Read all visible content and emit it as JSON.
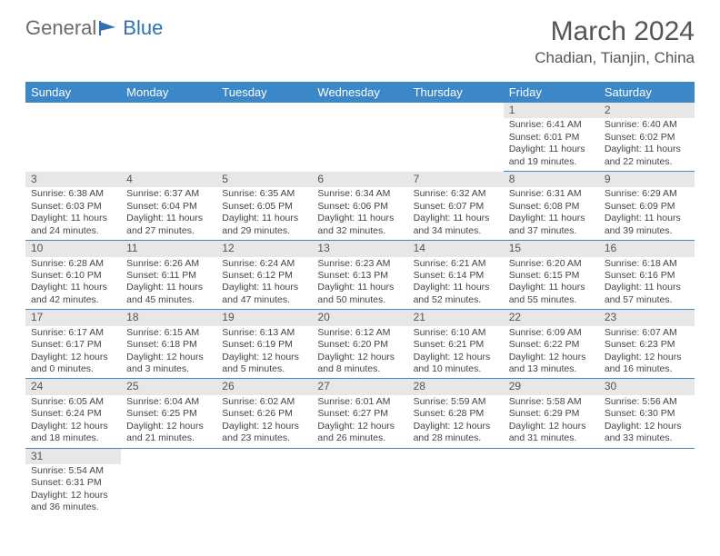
{
  "logo": {
    "text1": "General",
    "text2": "Blue"
  },
  "title": "March 2024",
  "location": "Chadian, Tianjin, China",
  "colors": {
    "header_bg": "#3b87c8",
    "header_fg": "#ffffff",
    "daynum_bg": "#e7e7e7",
    "row_divider": "#3b87c8",
    "text": "#444444"
  },
  "typography": {
    "title_fontsize": 30,
    "location_fontsize": 17,
    "weekday_fontsize": 13,
    "cell_fontsize": 10.5
  },
  "weekdays": [
    "Sunday",
    "Monday",
    "Tuesday",
    "Wednesday",
    "Thursday",
    "Friday",
    "Saturday"
  ],
  "weeks": [
    [
      null,
      null,
      null,
      null,
      null,
      {
        "n": "1",
        "sr": "Sunrise: 6:41 AM",
        "ss": "Sunset: 6:01 PM",
        "d1": "Daylight: 11 hours",
        "d2": "and 19 minutes."
      },
      {
        "n": "2",
        "sr": "Sunrise: 6:40 AM",
        "ss": "Sunset: 6:02 PM",
        "d1": "Daylight: 11 hours",
        "d2": "and 22 minutes."
      }
    ],
    [
      {
        "n": "3",
        "sr": "Sunrise: 6:38 AM",
        "ss": "Sunset: 6:03 PM",
        "d1": "Daylight: 11 hours",
        "d2": "and 24 minutes."
      },
      {
        "n": "4",
        "sr": "Sunrise: 6:37 AM",
        "ss": "Sunset: 6:04 PM",
        "d1": "Daylight: 11 hours",
        "d2": "and 27 minutes."
      },
      {
        "n": "5",
        "sr": "Sunrise: 6:35 AM",
        "ss": "Sunset: 6:05 PM",
        "d1": "Daylight: 11 hours",
        "d2": "and 29 minutes."
      },
      {
        "n": "6",
        "sr": "Sunrise: 6:34 AM",
        "ss": "Sunset: 6:06 PM",
        "d1": "Daylight: 11 hours",
        "d2": "and 32 minutes."
      },
      {
        "n": "7",
        "sr": "Sunrise: 6:32 AM",
        "ss": "Sunset: 6:07 PM",
        "d1": "Daylight: 11 hours",
        "d2": "and 34 minutes."
      },
      {
        "n": "8",
        "sr": "Sunrise: 6:31 AM",
        "ss": "Sunset: 6:08 PM",
        "d1": "Daylight: 11 hours",
        "d2": "and 37 minutes."
      },
      {
        "n": "9",
        "sr": "Sunrise: 6:29 AM",
        "ss": "Sunset: 6:09 PM",
        "d1": "Daylight: 11 hours",
        "d2": "and 39 minutes."
      }
    ],
    [
      {
        "n": "10",
        "sr": "Sunrise: 6:28 AM",
        "ss": "Sunset: 6:10 PM",
        "d1": "Daylight: 11 hours",
        "d2": "and 42 minutes."
      },
      {
        "n": "11",
        "sr": "Sunrise: 6:26 AM",
        "ss": "Sunset: 6:11 PM",
        "d1": "Daylight: 11 hours",
        "d2": "and 45 minutes."
      },
      {
        "n": "12",
        "sr": "Sunrise: 6:24 AM",
        "ss": "Sunset: 6:12 PM",
        "d1": "Daylight: 11 hours",
        "d2": "and 47 minutes."
      },
      {
        "n": "13",
        "sr": "Sunrise: 6:23 AM",
        "ss": "Sunset: 6:13 PM",
        "d1": "Daylight: 11 hours",
        "d2": "and 50 minutes."
      },
      {
        "n": "14",
        "sr": "Sunrise: 6:21 AM",
        "ss": "Sunset: 6:14 PM",
        "d1": "Daylight: 11 hours",
        "d2": "and 52 minutes."
      },
      {
        "n": "15",
        "sr": "Sunrise: 6:20 AM",
        "ss": "Sunset: 6:15 PM",
        "d1": "Daylight: 11 hours",
        "d2": "and 55 minutes."
      },
      {
        "n": "16",
        "sr": "Sunrise: 6:18 AM",
        "ss": "Sunset: 6:16 PM",
        "d1": "Daylight: 11 hours",
        "d2": "and 57 minutes."
      }
    ],
    [
      {
        "n": "17",
        "sr": "Sunrise: 6:17 AM",
        "ss": "Sunset: 6:17 PM",
        "d1": "Daylight: 12 hours",
        "d2": "and 0 minutes."
      },
      {
        "n": "18",
        "sr": "Sunrise: 6:15 AM",
        "ss": "Sunset: 6:18 PM",
        "d1": "Daylight: 12 hours",
        "d2": "and 3 minutes."
      },
      {
        "n": "19",
        "sr": "Sunrise: 6:13 AM",
        "ss": "Sunset: 6:19 PM",
        "d1": "Daylight: 12 hours",
        "d2": "and 5 minutes."
      },
      {
        "n": "20",
        "sr": "Sunrise: 6:12 AM",
        "ss": "Sunset: 6:20 PM",
        "d1": "Daylight: 12 hours",
        "d2": "and 8 minutes."
      },
      {
        "n": "21",
        "sr": "Sunrise: 6:10 AM",
        "ss": "Sunset: 6:21 PM",
        "d1": "Daylight: 12 hours",
        "d2": "and 10 minutes."
      },
      {
        "n": "22",
        "sr": "Sunrise: 6:09 AM",
        "ss": "Sunset: 6:22 PM",
        "d1": "Daylight: 12 hours",
        "d2": "and 13 minutes."
      },
      {
        "n": "23",
        "sr": "Sunrise: 6:07 AM",
        "ss": "Sunset: 6:23 PM",
        "d1": "Daylight: 12 hours",
        "d2": "and 16 minutes."
      }
    ],
    [
      {
        "n": "24",
        "sr": "Sunrise: 6:05 AM",
        "ss": "Sunset: 6:24 PM",
        "d1": "Daylight: 12 hours",
        "d2": "and 18 minutes."
      },
      {
        "n": "25",
        "sr": "Sunrise: 6:04 AM",
        "ss": "Sunset: 6:25 PM",
        "d1": "Daylight: 12 hours",
        "d2": "and 21 minutes."
      },
      {
        "n": "26",
        "sr": "Sunrise: 6:02 AM",
        "ss": "Sunset: 6:26 PM",
        "d1": "Daylight: 12 hours",
        "d2": "and 23 minutes."
      },
      {
        "n": "27",
        "sr": "Sunrise: 6:01 AM",
        "ss": "Sunset: 6:27 PM",
        "d1": "Daylight: 12 hours",
        "d2": "and 26 minutes."
      },
      {
        "n": "28",
        "sr": "Sunrise: 5:59 AM",
        "ss": "Sunset: 6:28 PM",
        "d1": "Daylight: 12 hours",
        "d2": "and 28 minutes."
      },
      {
        "n": "29",
        "sr": "Sunrise: 5:58 AM",
        "ss": "Sunset: 6:29 PM",
        "d1": "Daylight: 12 hours",
        "d2": "and 31 minutes."
      },
      {
        "n": "30",
        "sr": "Sunrise: 5:56 AM",
        "ss": "Sunset: 6:30 PM",
        "d1": "Daylight: 12 hours",
        "d2": "and 33 minutes."
      }
    ],
    [
      {
        "n": "31",
        "sr": "Sunrise: 5:54 AM",
        "ss": "Sunset: 6:31 PM",
        "d1": "Daylight: 12 hours",
        "d2": "and 36 minutes."
      },
      null,
      null,
      null,
      null,
      null,
      null
    ]
  ]
}
